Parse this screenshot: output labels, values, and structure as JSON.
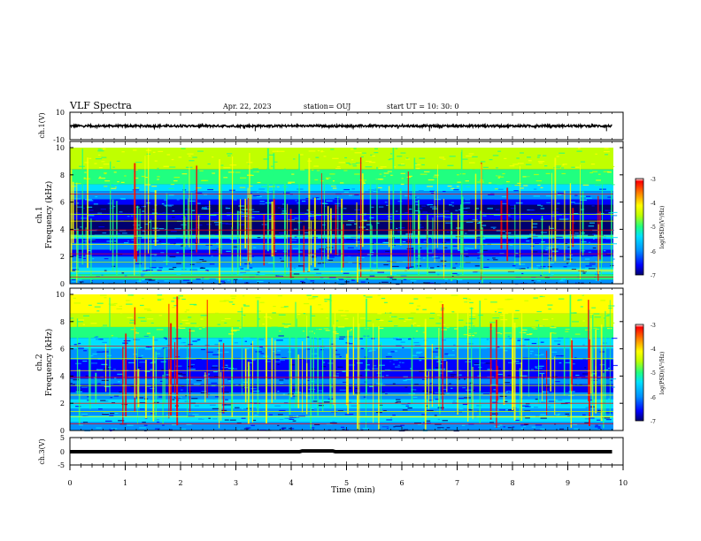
{
  "header": {
    "title": "VLF Spectra",
    "date": "Apr. 22, 2023",
    "station": "station= OUJ",
    "start": "start UT =  10: 30: 0"
  },
  "colors": {
    "colormap": [
      "#000070",
      "#0000ff",
      "#0090ff",
      "#00e0ff",
      "#20ff80",
      "#c0ff00",
      "#ffff00",
      "#ff8000",
      "#ff0000",
      "#ffffff"
    ]
  },
  "chart_data": [
    {
      "type": "line",
      "id": "ch1-waveform",
      "ylabel": "ch.1(V)",
      "ylim": [
        -10,
        10
      ],
      "yticks": [
        "10",
        "-10"
      ],
      "series": [
        {
          "x": [
            0,
            9.8
          ],
          "y": [
            0,
            0
          ]
        }
      ]
    },
    {
      "type": "heatmap",
      "id": "ch1-spectrogram",
      "ylabel_line1": "ch.1",
      "ylabel_line2": "Frequency (kHz)",
      "ylim": [
        0,
        10
      ],
      "yticks": [
        "0",
        "2",
        "4",
        "6",
        "8",
        "10"
      ],
      "colorbar": {
        "label": "log(PSD)(V²/Hz)",
        "ticks": [
          "-3",
          "-4",
          "-5",
          "-6",
          "-7"
        ],
        "range": [
          -7,
          -3
        ]
      },
      "x_range_min": [
        0,
        9.8
      ]
    },
    {
      "type": "heatmap",
      "id": "ch2-spectrogram",
      "ylabel_line1": "ch.2",
      "ylabel_line2": "Frequency (kHz)",
      "ylim": [
        0,
        10
      ],
      "yticks": [
        "0",
        "2",
        "4",
        "6",
        "8",
        "10"
      ],
      "colorbar": {
        "label": "log(PSD)(V²/Hz)",
        "ticks": [
          "-3",
          "-4",
          "-5",
          "-6",
          "-7"
        ],
        "range": [
          -7,
          -3
        ]
      },
      "x_range_min": [
        0,
        9.8
      ]
    },
    {
      "type": "line",
      "id": "ch3-signal",
      "ylabel": "ch.3(V)",
      "ylim": [
        -5,
        5
      ],
      "yticks": [
        "5",
        "0",
        "-5"
      ],
      "series": [
        {
          "x": [
            0,
            4.15,
            4.2,
            4.75,
            4.8,
            9.8
          ],
          "y": [
            0,
            0,
            0.3,
            0.3,
            0,
            0
          ]
        }
      ]
    }
  ],
  "xaxis": {
    "label": "Time (min)",
    "xlim": [
      0,
      10
    ],
    "ticks": [
      "0",
      "1",
      "2",
      "3",
      "4",
      "5",
      "6",
      "7",
      "8",
      "9",
      "10"
    ]
  }
}
